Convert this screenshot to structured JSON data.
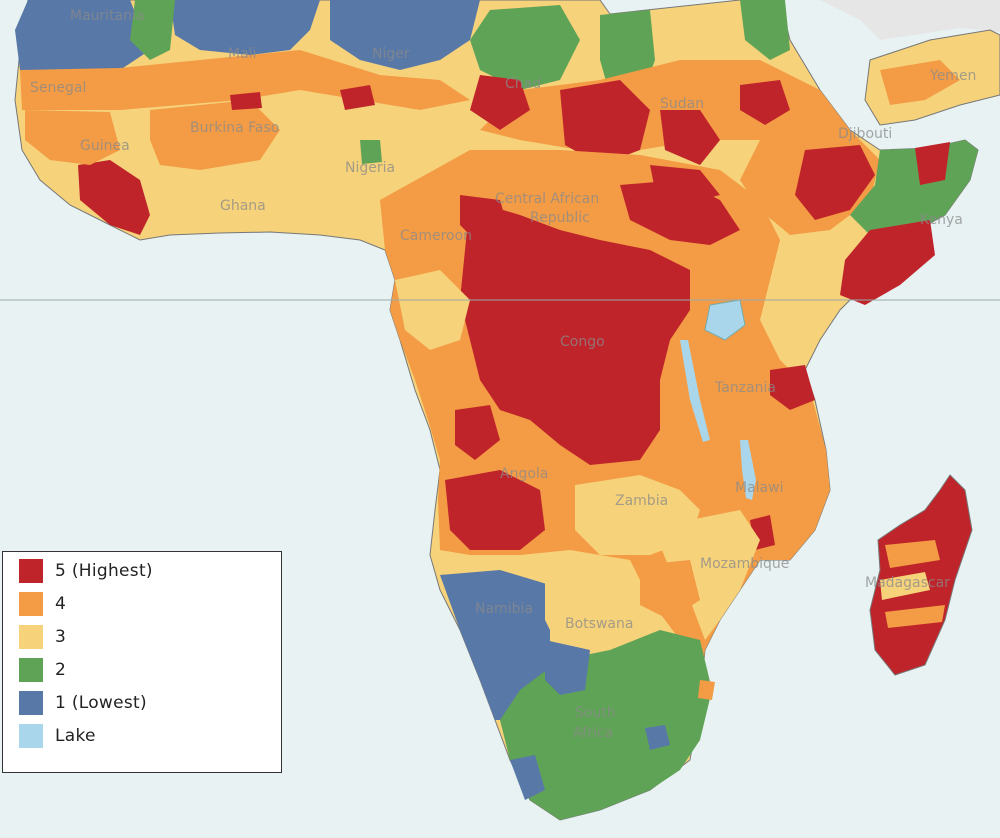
{
  "colors": {
    "ocean": "#e8f2f2",
    "level5": "#c0242b",
    "level4": "#f39c45",
    "level3": "#f6d27a",
    "level2": "#5fa356",
    "level1": "#5878a8",
    "lake": "#a9d6ea",
    "outside": "#e6e6e6"
  },
  "legend": {
    "items": [
      {
        "label": "5 (Highest)",
        "color": "#c0242b"
      },
      {
        "label": "4",
        "color": "#f39c45"
      },
      {
        "label": "3",
        "color": "#f6d27a"
      },
      {
        "label": "2",
        "color": "#5fa356"
      },
      {
        "label": "1 (Lowest)",
        "color": "#5878a8"
      },
      {
        "label": "Lake",
        "color": "#a9d6ea"
      }
    ]
  },
  "map": {
    "labels": {
      "mauritania": "Mauritania",
      "mali": "Mali",
      "niger": "Niger",
      "senegal": "Senegal",
      "burkina_faso": "Burkina Faso",
      "guinea": "Guinea",
      "ghana": "Ghana",
      "nigeria": "Nigeria",
      "cameroon": "Cameroon",
      "chad": "Chad",
      "sudan": "Sudan",
      "car": "Central African",
      "car2": "Republic",
      "yemen": "Yemen",
      "djibouti": "Djibouti",
      "kenya": "Kenya",
      "congo": "Congo",
      "tanzania": "Tanzania",
      "angola": "Angola",
      "zambia": "Zambia",
      "malawi": "Malawi",
      "mozambique": "Mozambique",
      "madagascar": "Madagascar",
      "namibia": "Namibia",
      "botswana": "Botswana",
      "south_africa": "South",
      "south_africa2": "Africa"
    }
  }
}
